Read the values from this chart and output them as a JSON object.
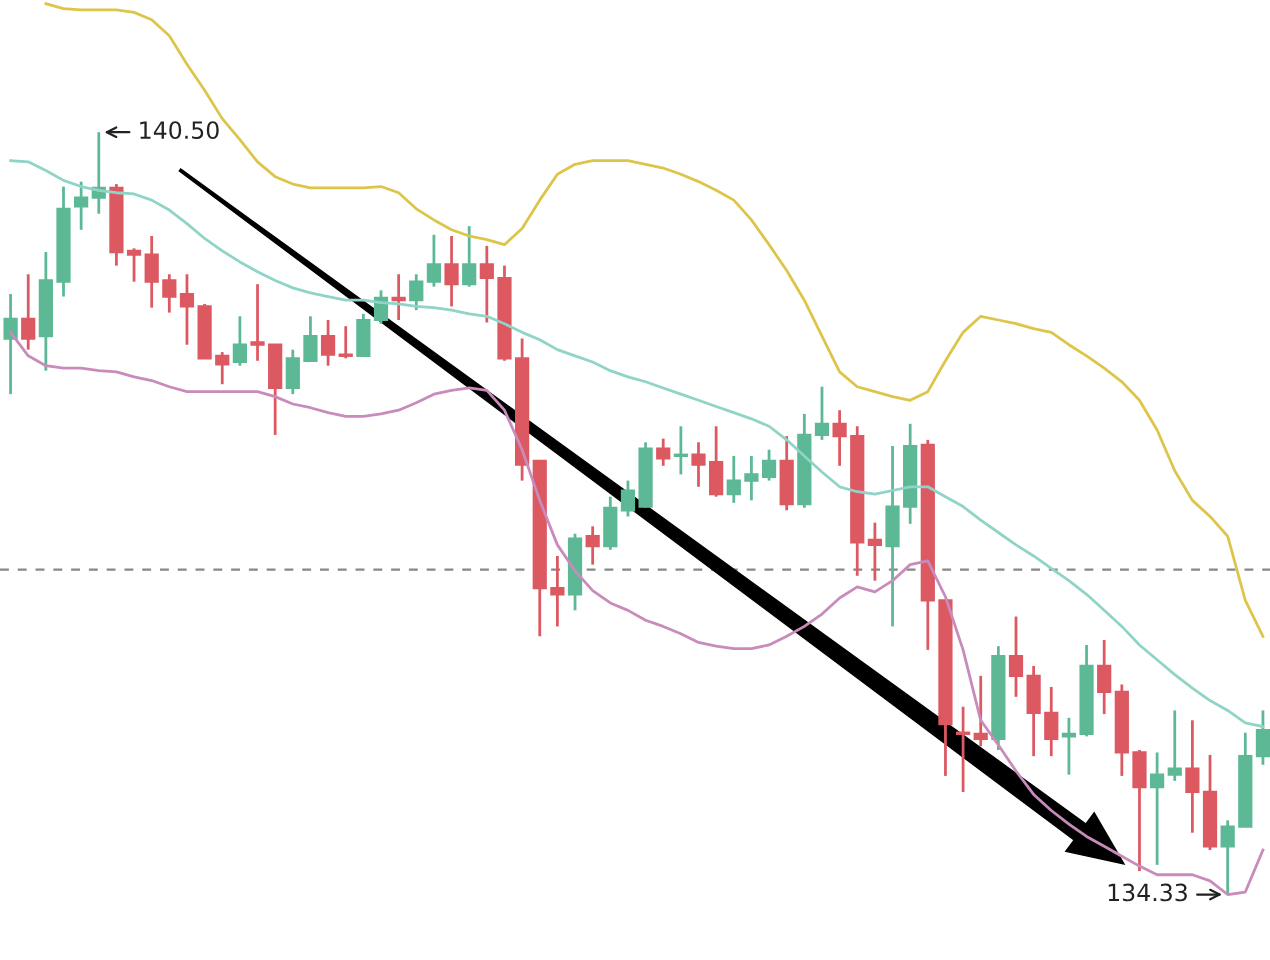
{
  "chart_data": {
    "type": "candlestick",
    "categories": [
      null,
      null,
      null,
      null,
      null,
      null,
      null,
      null,
      null,
      null,
      null,
      null,
      null,
      null,
      null,
      null,
      null,
      null,
      null,
      null,
      null,
      null,
      null,
      null,
      null,
      null,
      null,
      null,
      null,
      null,
      null,
      null,
      null,
      null,
      null,
      null,
      null,
      null,
      null,
      null,
      null,
      null,
      null,
      null,
      null,
      null,
      null,
      null,
      null,
      null,
      null,
      null,
      null,
      null,
      null,
      null,
      null,
      null,
      null,
      null,
      null,
      null,
      null,
      null,
      null,
      null,
      null,
      null,
      null,
      null,
      null,
      null
    ],
    "ohlc": [
      [
        138.83,
        139.19,
        138.38,
        138.99
      ],
      [
        138.99,
        139.35,
        138.74,
        138.83
      ],
      [
        138.85,
        139.53,
        138.57,
        139.3
      ],
      [
        139.29,
        140.06,
        139.17,
        139.88
      ],
      [
        139.9,
        140.1,
        139.71,
        139.97
      ],
      [
        139.97,
        140.5,
        139.84,
        140.05
      ],
      [
        140.05,
        140.08,
        139.42,
        139.53
      ],
      [
        139.54,
        139.56,
        139.29,
        139.51
      ],
      [
        139.51,
        139.66,
        139.08,
        139.29
      ],
      [
        139.3,
        139.35,
        139.04,
        139.17
      ],
      [
        139.19,
        139.35,
        138.78,
        139.09
      ],
      [
        139.09,
        139.11,
        138.67,
        138.67
      ],
      [
        138.69,
        138.72,
        138.46,
        138.62
      ],
      [
        138.64,
        139.01,
        138.61,
        138.78
      ],
      [
        138.8,
        139.27,
        138.65,
        138.78
      ],
      [
        138.78,
        138.78,
        138.05,
        138.43
      ],
      [
        138.43,
        138.74,
        138.38,
        138.67
      ],
      [
        138.65,
        139.01,
        138.65,
        138.85
      ],
      [
        138.85,
        138.98,
        138.61,
        138.7
      ],
      [
        138.7,
        138.93,
        138.67,
        138.69
      ],
      [
        138.69,
        139.03,
        138.69,
        138.98
      ],
      [
        138.98,
        139.22,
        138.95,
        139.16
      ],
      [
        139.16,
        139.35,
        138.98,
        139.14
      ],
      [
        139.14,
        139.35,
        139.06,
        139.29
      ],
      [
        139.29,
        139.67,
        139.25,
        139.43
      ],
      [
        139.43,
        139.66,
        139.09,
        139.27
      ],
      [
        139.27,
        139.74,
        139.25,
        139.43
      ],
      [
        139.43,
        139.58,
        138.96,
        139.32
      ],
      [
        139.32,
        139.42,
        138.65,
        138.67
      ],
      [
        138.67,
        138.83,
        137.68,
        137.81
      ],
      [
        137.84,
        137.84,
        136.42,
        136.81
      ],
      [
        136.81,
        137.07,
        136.5,
        136.76
      ],
      [
        136.76,
        137.25,
        136.63,
        137.21
      ],
      [
        137.23,
        137.31,
        137.0,
        137.15
      ],
      [
        137.15,
        137.55,
        137.12,
        137.46
      ],
      [
        137.44,
        137.68,
        137.39,
        137.6
      ],
      [
        137.47,
        137.99,
        137.46,
        137.94
      ],
      [
        137.94,
        138.02,
        137.8,
        137.86
      ],
      [
        137.88,
        138.12,
        137.73,
        137.89
      ],
      [
        137.89,
        137.99,
        137.63,
        137.81
      ],
      [
        137.83,
        138.12,
        137.55,
        137.57
      ],
      [
        137.57,
        137.88,
        137.5,
        137.68
      ],
      [
        137.68,
        137.88,
        137.52,
        137.73
      ],
      [
        137.71,
        137.93,
        137.68,
        137.84
      ],
      [
        137.84,
        138.04,
        137.44,
        137.49
      ],
      [
        137.49,
        138.22,
        137.46,
        138.05
      ],
      [
        138.05,
        138.44,
        138.01,
        138.14
      ],
      [
        138.14,
        138.25,
        137.8,
        138.04
      ],
      [
        138.04,
        138.12,
        136.91,
        137.18
      ],
      [
        137.2,
        137.34,
        136.87,
        137.16
      ],
      [
        137.15,
        137.96,
        136.5,
        137.47
      ],
      [
        137.47,
        138.14,
        137.33,
        137.96
      ],
      [
        137.97,
        138.01,
        136.31,
        136.71
      ],
      [
        136.71,
        136.71,
        135.29,
        135.71
      ],
      [
        135.64,
        135.85,
        135.16,
        135.63
      ],
      [
        135.63,
        136.1,
        135.53,
        135.59
      ],
      [
        135.59,
        136.34,
        135.5,
        136.26
      ],
      [
        136.26,
        136.58,
        135.93,
        136.1
      ],
      [
        136.1,
        136.18,
        135.45,
        135.8
      ],
      [
        135.8,
        136.01,
        135.45,
        135.59
      ],
      [
        135.61,
        135.76,
        135.3,
        135.63
      ],
      [
        135.63,
        136.35,
        135.61,
        136.18
      ],
      [
        136.18,
        136.39,
        135.79,
        135.97
      ],
      [
        135.97,
        136.03,
        135.29,
        135.48
      ],
      [
        135.48,
        135.5,
        134.52,
        135.2
      ],
      [
        135.2,
        135.48,
        134.57,
        135.3
      ],
      [
        135.3,
        135.82,
        135.25,
        135.35
      ],
      [
        135.35,
        135.74,
        134.83,
        135.16
      ],
      [
        135.16,
        135.46,
        134.69,
        134.72
      ],
      [
        134.72,
        134.93,
        134.33,
        134.88
      ],
      [
        134.88,
        135.64,
        134.88,
        135.45
      ],
      [
        135.45,
        135.82,
        135.38,
        135.66
      ]
    ],
    "colors": [
      "#5cb895",
      "#dc5962",
      "#5cb895",
      "#5cb895",
      "#5cb895",
      "#5cb895",
      "#dc5962",
      "#dc5962",
      "#dc5962",
      "#dc5962",
      "#dc5962",
      "#dc5962",
      "#dc5962",
      "#5cb895",
      "#dc5962",
      "#dc5962",
      "#5cb895",
      "#5cb895",
      "#dc5962",
      "#dc5962",
      "#5cb895",
      "#5cb895",
      "#dc5962",
      "#5cb895",
      "#5cb895",
      "#dc5962",
      "#5cb895",
      "#dc5962",
      "#dc5962",
      "#dc5962",
      "#dc5962",
      "#dc5962",
      "#5cb895",
      "#dc5962",
      "#5cb895",
      "#5cb895",
      "#5cb895",
      "#dc5962",
      "#5cb895",
      "#dc5962",
      "#dc5962",
      "#5cb895",
      "#5cb895",
      "#5cb895",
      "#dc5962",
      "#5cb895",
      "#5cb895",
      "#dc5962",
      "#dc5962",
      "#dc5962",
      "#5cb895",
      "#5cb895",
      "#dc5962",
      "#dc5962",
      "#dc5962",
      "#dc5962",
      "#5cb895",
      "#dc5962",
      "#dc5962",
      "#dc5962",
      "#5cb895",
      "#5cb895",
      "#dc5962",
      "#dc5962",
      "#dc5962",
      "#5cb895",
      "#5cb895",
      "#dc5962",
      "#dc5962",
      "#5cb895",
      "#5cb895",
      "#5cb895"
    ],
    "series": [
      {
        "type": "line",
        "color": "#dcc54a",
        "values": [
          null,
          null,
          141.54,
          141.5,
          141.49,
          141.49,
          141.49,
          141.47,
          141.41,
          141.28,
          141.05,
          140.84,
          140.61,
          140.44,
          140.26,
          140.14,
          140.08,
          140.05,
          140.05,
          140.05,
          140.05,
          140.06,
          140.01,
          139.88,
          139.79,
          139.71,
          139.66,
          139.63,
          139.59,
          139.72,
          139.95,
          140.16,
          140.24,
          140.27,
          140.27,
          140.27,
          140.24,
          140.21,
          140.16,
          140.1,
          140.03,
          139.95,
          139.79,
          139.59,
          139.38,
          139.14,
          138.85,
          138.56,
          138.44,
          138.4,
          138.36,
          138.33,
          138.4,
          138.65,
          138.88,
          139.01,
          138.98,
          138.95,
          138.91,
          138.88,
          138.78,
          138.69,
          138.59,
          138.48,
          138.33,
          138.09,
          137.76,
          137.52,
          137.39,
          137.23,
          136.71,
          136.42
        ]
      },
      {
        "type": "line",
        "color": "#8fd4c6",
        "values": [
          140.27,
          140.26,
          140.19,
          140.11,
          140.06,
          140.03,
          140.01,
          140.0,
          139.95,
          139.87,
          139.76,
          139.64,
          139.54,
          139.45,
          139.37,
          139.3,
          139.24,
          139.2,
          139.17,
          139.14,
          139.14,
          139.12,
          139.11,
          139.09,
          139.08,
          139.06,
          139.03,
          139.01,
          138.95,
          138.88,
          138.82,
          138.74,
          138.69,
          138.64,
          138.57,
          138.52,
          138.48,
          138.43,
          138.38,
          138.33,
          138.28,
          138.23,
          138.18,
          138.12,
          138.01,
          137.88,
          137.75,
          137.63,
          137.59,
          137.57,
          137.6,
          137.63,
          137.63,
          137.55,
          137.47,
          137.36,
          137.26,
          137.16,
          137.07,
          136.97,
          136.87,
          136.76,
          136.63,
          136.5,
          136.35,
          136.23,
          136.11,
          136.0,
          135.9,
          135.82,
          135.72,
          135.69
        ]
      },
      {
        "type": "line",
        "color": "#c88bbb",
        "values": [
          138.88,
          138.69,
          138.61,
          138.59,
          138.59,
          138.57,
          138.56,
          138.52,
          138.49,
          138.44,
          138.4,
          138.4,
          138.4,
          138.4,
          138.4,
          138.36,
          138.3,
          138.27,
          138.23,
          138.2,
          138.2,
          138.22,
          138.25,
          138.31,
          138.38,
          138.41,
          138.43,
          138.41,
          138.25,
          137.93,
          137.52,
          137.16,
          136.95,
          136.79,
          136.69,
          136.63,
          136.55,
          136.5,
          136.44,
          136.37,
          136.34,
          136.32,
          136.32,
          136.35,
          136.42,
          136.5,
          136.6,
          136.73,
          136.82,
          136.78,
          136.87,
          137.0,
          137.03,
          136.74,
          136.31,
          135.74,
          135.54,
          135.33,
          135.14,
          135.01,
          134.9,
          134.8,
          134.72,
          134.64,
          134.56,
          134.49,
          134.49,
          134.49,
          134.44,
          134.33,
          134.35,
          134.69
        ]
      }
    ],
    "ylim": [
      133.8,
      141.57
    ],
    "ref_lines": [
      {
        "axis": "y",
        "value": 136.96,
        "color": "#888888",
        "line_style": "dashed"
      }
    ],
    "annotations": [
      "140.50",
      "134.33"
    ],
    "tick_labels": false
  }
}
